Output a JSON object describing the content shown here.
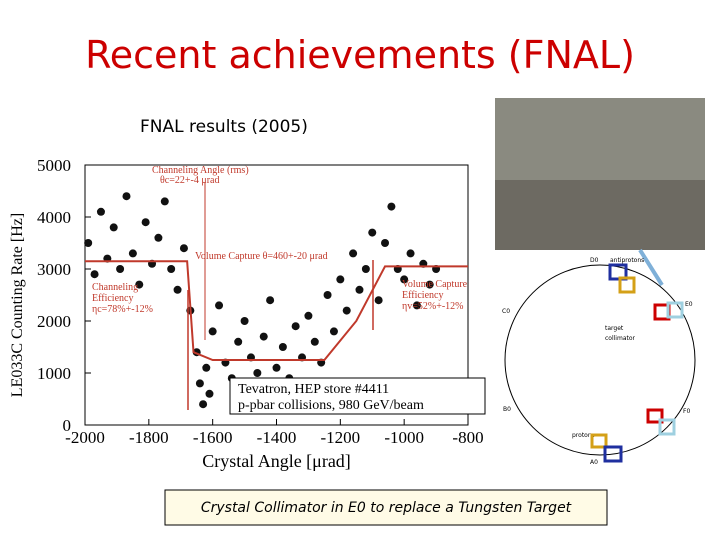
{
  "slide_title": "Recent achievements (FNAL)",
  "subtitle": "FNAL results (2005)",
  "chart_data": {
    "type": "scatter",
    "xlabel": "Crystal Angle [μrad]",
    "ylabel": "LE033C  Counting Rate [Hz]",
    "xlim": [
      -2000,
      -800
    ],
    "ylim": [
      0,
      5000
    ],
    "xticks": [
      -2000,
      -1800,
      -1600,
      -1400,
      -1200,
      -1000,
      -800
    ],
    "yticks": [
      0,
      1000,
      2000,
      3000,
      4000,
      5000
    ],
    "color": "#111111",
    "x": [
      -1990,
      -1970,
      -1950,
      -1930,
      -1910,
      -1890,
      -1870,
      -1850,
      -1830,
      -1810,
      -1790,
      -1770,
      -1750,
      -1730,
      -1710,
      -1690,
      -1670,
      -1650,
      -1640,
      -1630,
      -1620,
      -1610,
      -1600,
      -1580,
      -1560,
      -1540,
      -1520,
      -1500,
      -1480,
      -1460,
      -1440,
      -1420,
      -1400,
      -1380,
      -1360,
      -1340,
      -1320,
      -1300,
      -1280,
      -1260,
      -1240,
      -1220,
      -1200,
      -1180,
      -1160,
      -1140,
      -1120,
      -1100,
      -1080,
      -1060,
      -1040,
      -1020,
      -1000,
      -980,
      -960,
      -940,
      -920,
      -900
    ],
    "values": [
      3500,
      2900,
      4100,
      3200,
      3800,
      3000,
      4400,
      3300,
      2700,
      3900,
      3100,
      3600,
      4300,
      3000,
      2600,
      3400,
      2200,
      1400,
      800,
      400,
      1100,
      600,
      1800,
      2300,
      1200,
      900,
      1600,
      2000,
      1300,
      1000,
      1700,
      2400,
      1100,
      1500,
      900,
      1900,
      1300,
      2100,
      1600,
      1200,
      2500,
      1800,
      2800,
      2200,
      3300,
      2600,
      3000,
      3700,
      2400,
      3500,
      4200,
      3000,
      2800,
      3300,
      2300,
      3100,
      2700,
      3000
    ],
    "fit": {
      "color": "#c0392b",
      "x": [
        -2000,
        -1680,
        -1660,
        -1600,
        -1250,
        -1150,
        -1060,
        -800
      ],
      "values": [
        3150,
        3150,
        1400,
        1250,
        1250,
        2000,
        3050,
        3050
      ]
    },
    "annotations": {
      "channeling_angle": [
        "Channeling Angle (rms)",
        "θc=22+-4 μrad"
      ],
      "volume_capture": "Volume Capture θ=460+-20 μrad",
      "channeling_eff": [
        "Channeling",
        "Efficiency",
        "ηc=78%+-12%"
      ],
      "volume_eff": [
        "Volume Capture",
        "Efficiency",
        "ηv=52%+-12%"
      ],
      "store": [
        "Tevatron, HEP store #4411",
        "p-pbar collisions, 980 GeV/beam"
      ]
    }
  },
  "ring": {
    "labels": [
      "D0",
      "B0",
      "C0",
      "E0",
      "F0",
      "A0"
    ],
    "legend": [
      "target",
      "collimator"
    ],
    "beams": [
      "antiprotons",
      "protons"
    ]
  },
  "caption": "Crystal Collimator in E0 to replace a Tungsten Target"
}
